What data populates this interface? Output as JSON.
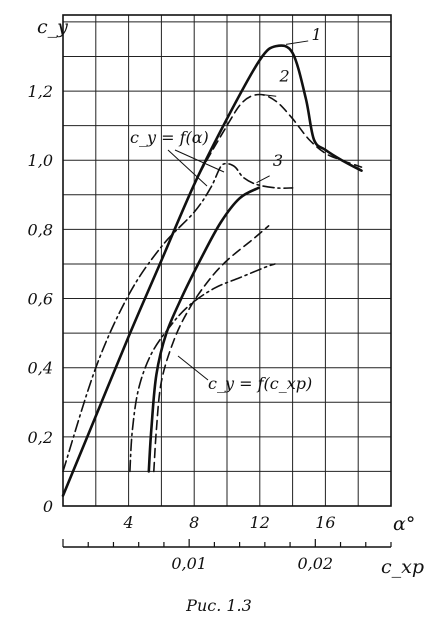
{
  "caption": "Рис. 1.3",
  "chart_data": {
    "type": "line",
    "title": "",
    "xlabel": "α°",
    "x2label": "c_xp",
    "ylabel": "c_y",
    "xlim": [
      0,
      20
    ],
    "ylim": [
      0,
      1.42
    ],
    "x2lim": [
      0,
      0.026
    ],
    "grid": true,
    "x_ticks": [
      4,
      8,
      12,
      16
    ],
    "x_tick_labels": [
      "4",
      "8",
      "12",
      "16"
    ],
    "x2_ticks": [
      0.01,
      0.02
    ],
    "x2_tick_labels": [
      "0,01",
      "0,02"
    ],
    "y_ticks": [
      0,
      0.2,
      0.4,
      0.6,
      0.8,
      1.0,
      1.2
    ],
    "y_tick_labels": [
      "0",
      "0,2",
      "0,4",
      "0,6",
      "0,8",
      "1,0",
      "1,2"
    ],
    "curve_labels": [
      "1",
      "2",
      "3"
    ],
    "annotations": [
      {
        "text": "c_y = f(α)"
      },
      {
        "text": "c_y = f(c_xp)"
      }
    ],
    "series": [
      {
        "group": "cy_vs_alpha",
        "label": "1",
        "style": "solid",
        "x": [
          0,
          2,
          4,
          6,
          8,
          10,
          12,
          13,
          14,
          14.8,
          15.3,
          16,
          17,
          18.2
        ],
        "y": [
          0.03,
          0.26,
          0.49,
          0.71,
          0.93,
          1.12,
          1.29,
          1.33,
          1.31,
          1.18,
          1.06,
          1.03,
          1.0,
          0.97
        ]
      },
      {
        "group": "cy_vs_alpha",
        "label": "2",
        "style": "dashed",
        "x": [
          0,
          2,
          4,
          6,
          8,
          10,
          11,
          12,
          13,
          14,
          15,
          16,
          17,
          18.2
        ],
        "y": [
          0.03,
          0.26,
          0.49,
          0.71,
          0.93,
          1.1,
          1.17,
          1.19,
          1.17,
          1.12,
          1.06,
          1.02,
          1.0,
          0.98
        ]
      },
      {
        "group": "cy_vs_alpha",
        "label": "3",
        "style": "dashdot",
        "x": [
          0,
          2,
          4,
          6,
          8,
          9,
          9.6,
          10,
          10.5,
          11,
          11.8,
          13,
          14
        ],
        "y": [
          0.1,
          0.4,
          0.61,
          0.75,
          0.85,
          0.92,
          0.98,
          0.99,
          0.98,
          0.95,
          0.93,
          0.92,
          0.92
        ]
      },
      {
        "group": "cy_vs_cxp",
        "label": "1",
        "style": "solid",
        "x2": [
          0.0068,
          0.007,
          0.0074,
          0.0082,
          0.0095,
          0.011,
          0.0125,
          0.014,
          0.0155
        ],
        "y": [
          0.1,
          0.22,
          0.38,
          0.5,
          0.61,
          0.72,
          0.82,
          0.89,
          0.92
        ]
      },
      {
        "group": "cy_vs_cxp",
        "label": "2",
        "style": "dashed",
        "x2": [
          0.0072,
          0.0074,
          0.0078,
          0.0088,
          0.01,
          0.0115,
          0.013,
          0.015,
          0.0163
        ],
        "y": [
          0.1,
          0.22,
          0.36,
          0.48,
          0.57,
          0.65,
          0.71,
          0.77,
          0.81
        ]
      },
      {
        "group": "cy_vs_cxp",
        "label": "3",
        "style": "dashdot",
        "x2": [
          0.0053,
          0.0055,
          0.006,
          0.007,
          0.0085,
          0.01,
          0.012,
          0.014,
          0.016,
          0.0168
        ],
        "y": [
          0.1,
          0.22,
          0.34,
          0.44,
          0.52,
          0.58,
          0.63,
          0.66,
          0.69,
          0.7
        ]
      }
    ]
  }
}
